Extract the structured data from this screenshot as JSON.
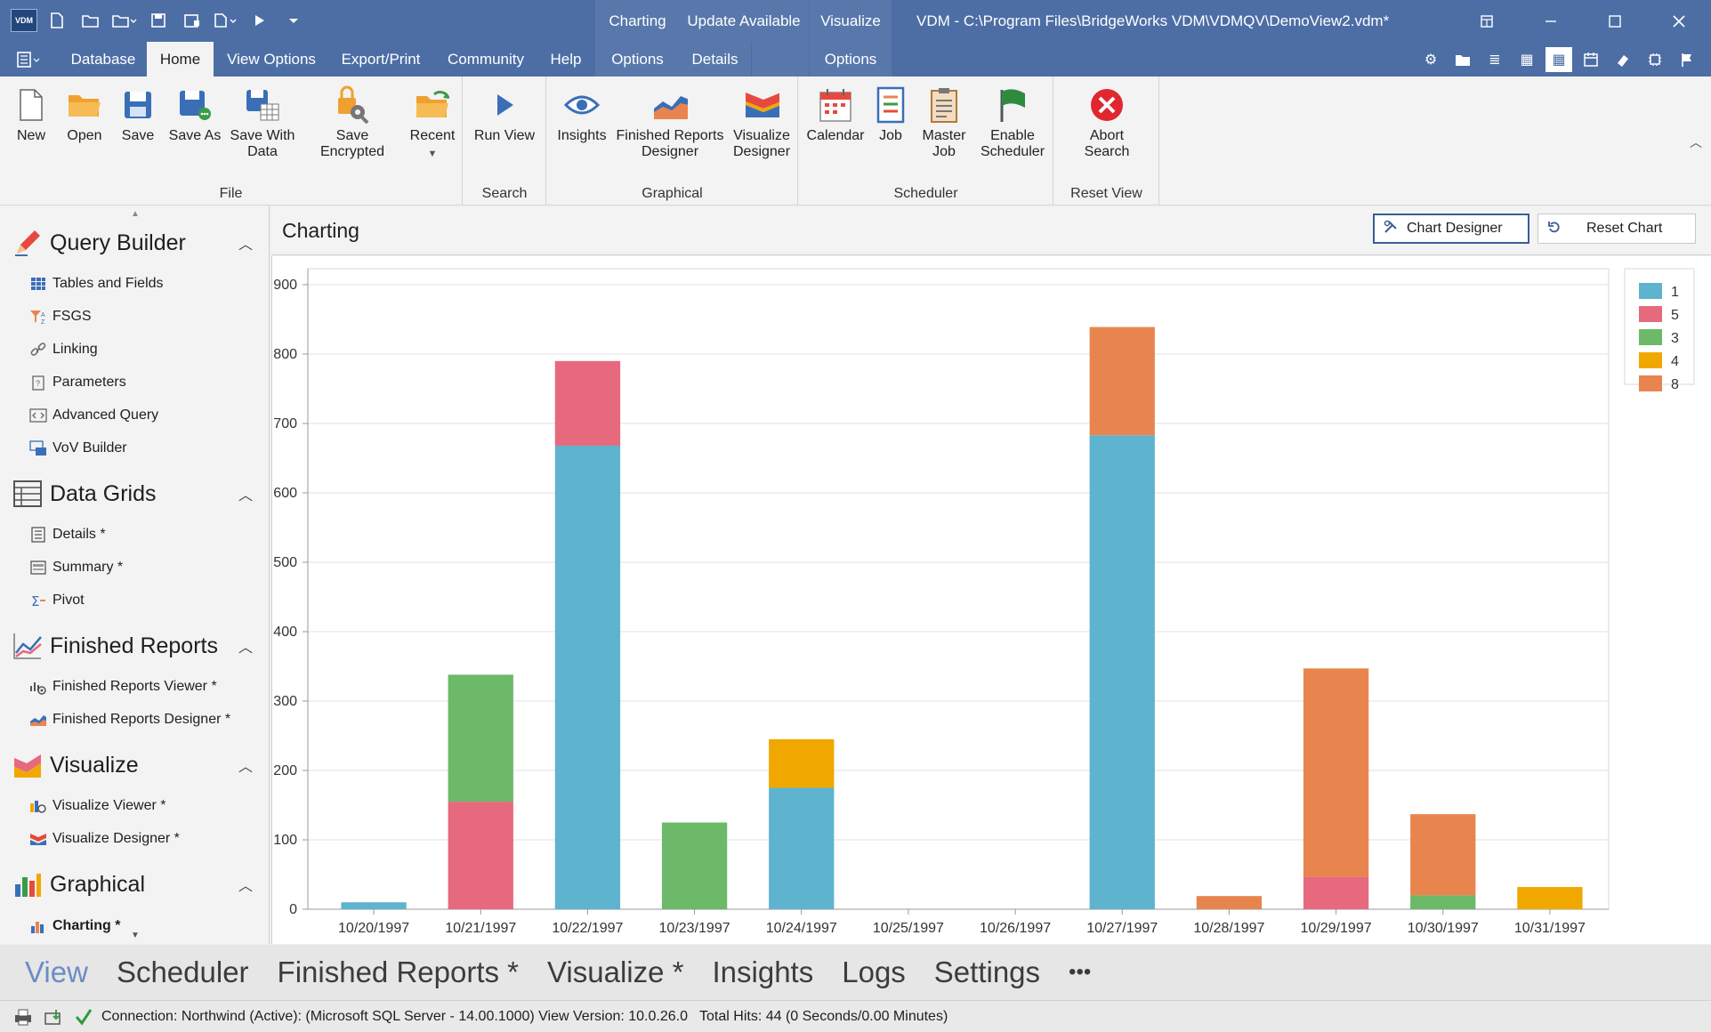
{
  "titlebar": {
    "logo": "VDM",
    "window_title": "VDM - C:\\Program Files\\BridgeWorks VDM\\VDMQV\\DemoView2.vdm*",
    "context_headers": [
      "Charting",
      "Update Available",
      "Visualize"
    ]
  },
  "tabs": {
    "items": [
      "Database",
      "Home",
      "View Options",
      "Export/Print",
      "Community",
      "Help"
    ],
    "context_tabs": [
      "Options",
      "Details",
      "Options"
    ],
    "active": "Home"
  },
  "ribbon": {
    "groups": [
      {
        "label": "File",
        "buttons": [
          "New",
          "Open",
          "Save",
          "Save As",
          "Save With Data",
          "Save Encrypted",
          "Recent"
        ]
      },
      {
        "label": "Search",
        "buttons": [
          "Run View"
        ]
      },
      {
        "label": "Graphical",
        "buttons": [
          "Insights",
          "Finished Reports Designer",
          "Visualize Designer"
        ]
      },
      {
        "label": "Scheduler",
        "buttons": [
          "Calendar",
          "Job",
          "Master Job",
          "Enable Scheduler"
        ]
      },
      {
        "label": "Reset View",
        "buttons": [
          "Abort Search"
        ]
      }
    ]
  },
  "nav": {
    "sections": [
      {
        "title": "Query Builder",
        "items": [
          "Tables and Fields",
          "FSGS",
          "Linking",
          "Parameters",
          "Advanced Query",
          "VoV Builder"
        ]
      },
      {
        "title": "Data Grids",
        "items": [
          "Details *",
          "Summary *",
          "Pivot"
        ]
      },
      {
        "title": "Finished Reports",
        "items": [
          "Finished Reports Viewer *",
          "Finished Reports Designer *"
        ]
      },
      {
        "title": "Visualize",
        "items": [
          "Visualize Viewer *",
          "Visualize Designer *"
        ]
      },
      {
        "title": "Graphical",
        "items": [
          "Charting *"
        ]
      }
    ]
  },
  "panel": {
    "title": "Charting",
    "chart_designer_label": "Chart Designer",
    "reset_chart_label": "Reset Chart"
  },
  "chart_data": {
    "type": "bar",
    "stacked": true,
    "categories": [
      "10/20/1997",
      "10/21/1997",
      "10/22/1997",
      "10/23/1997",
      "10/24/1997",
      "10/25/1997",
      "10/26/1997",
      "10/27/1997",
      "10/28/1997",
      "10/29/1997",
      "10/30/1997",
      "10/31/1997"
    ],
    "series": [
      {
        "name": "1",
        "color": "#5eb3cf",
        "values": [
          10,
          0,
          668,
          0,
          175,
          0,
          0,
          683,
          0,
          0,
          0,
          0
        ]
      },
      {
        "name": "5",
        "color": "#e6697d",
        "values": [
          0,
          155,
          122,
          0,
          0,
          0,
          0,
          0,
          0,
          47,
          0,
          0
        ]
      },
      {
        "name": "3",
        "color": "#6cb96a",
        "values": [
          0,
          183,
          0,
          125,
          0,
          0,
          0,
          0,
          0,
          0,
          20,
          0
        ]
      },
      {
        "name": "4",
        "color": "#f0a800",
        "values": [
          0,
          0,
          0,
          0,
          70,
          0,
          0,
          0,
          0,
          0,
          0,
          32
        ]
      },
      {
        "name": "8",
        "color": "#e8854f",
        "values": [
          0,
          0,
          0,
          0,
          0,
          0,
          0,
          156,
          19,
          300,
          117,
          0
        ]
      }
    ],
    "y_ticks": [
      0,
      100,
      200,
      300,
      400,
      500,
      600,
      700,
      800,
      900
    ],
    "ylim": [
      0,
      900
    ],
    "grid": true,
    "legend": "top-right"
  },
  "bottom_tabs": {
    "items": [
      "View",
      "Scheduler",
      "Finished Reports *",
      "Visualize *",
      "Insights",
      "Logs",
      "Settings",
      "•••"
    ],
    "active": "View"
  },
  "status": {
    "text": "Connection: Northwind (Active): (Microsoft SQL Server - 14.00.1000) View Version: 10.0.26.0   Total Hits: 44 (0 Seconds/0.00 Minutes)"
  }
}
